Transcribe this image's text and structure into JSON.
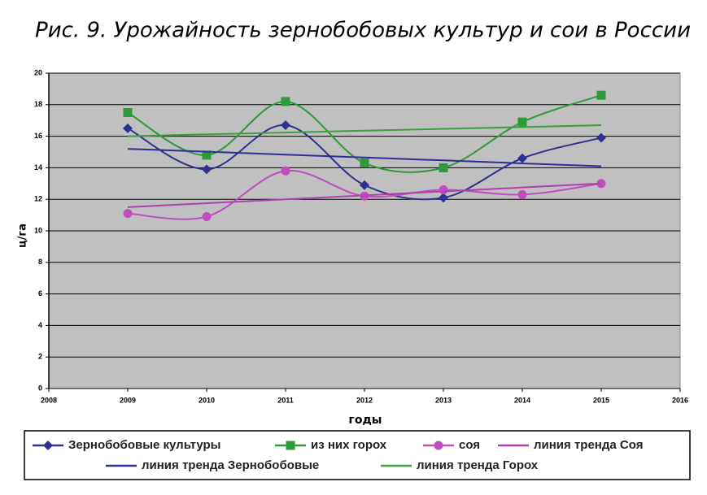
{
  "chart_data": {
    "type": "line",
    "title": "Рис. 9. Урожайность зернобобовых культур и сои в России",
    "x_label": "годы",
    "y_label": "ц/га",
    "x": [
      2009,
      2010,
      2011,
      2012,
      2013,
      2014,
      2015
    ],
    "xlim": [
      2008,
      2016
    ],
    "xticks": [
      2008,
      2009,
      2010,
      2011,
      2012,
      2013,
      2014,
      2015,
      2016
    ],
    "ylim": [
      0,
      20
    ],
    "yticks": [
      0,
      2,
      4,
      6,
      8,
      10,
      12,
      14,
      16,
      18,
      20
    ],
    "grid": true,
    "smooth": true,
    "plot_background": "#c0c0c0",
    "series": [
      {
        "name": "Зернобобовые культуры",
        "color": "#2e3192",
        "marker": "diamond",
        "values": [
          16.5,
          13.9,
          16.7,
          12.9,
          12.1,
          14.6,
          15.9
        ]
      },
      {
        "name": "из них горох",
        "color": "#2e9a3a",
        "marker": "square",
        "values": [
          17.5,
          14.8,
          18.2,
          14.3,
          14.0,
          16.9,
          18.6
        ]
      },
      {
        "name": "соя",
        "color": "#c04ec0",
        "marker": "circle",
        "values": [
          11.1,
          10.9,
          13.8,
          12.2,
          12.6,
          12.3,
          13.0
        ]
      },
      {
        "name": "линия тренда Соя",
        "color": "#b040b0",
        "marker": "none",
        "values": [
          11.5,
          11.75,
          12.0,
          12.25,
          12.5,
          12.75,
          13.0
        ]
      },
      {
        "name": "линия тренда Зернобобовые",
        "color": "#2e2e9a",
        "marker": "none",
        "values": [
          15.2,
          15.02,
          14.83,
          14.65,
          14.47,
          14.28,
          14.1
        ]
      },
      {
        "name": "линия тренда Горох",
        "color": "#3aa03a",
        "marker": "none",
        "values": [
          16.0,
          16.12,
          16.23,
          16.35,
          16.47,
          16.58,
          16.7
        ]
      }
    ]
  }
}
